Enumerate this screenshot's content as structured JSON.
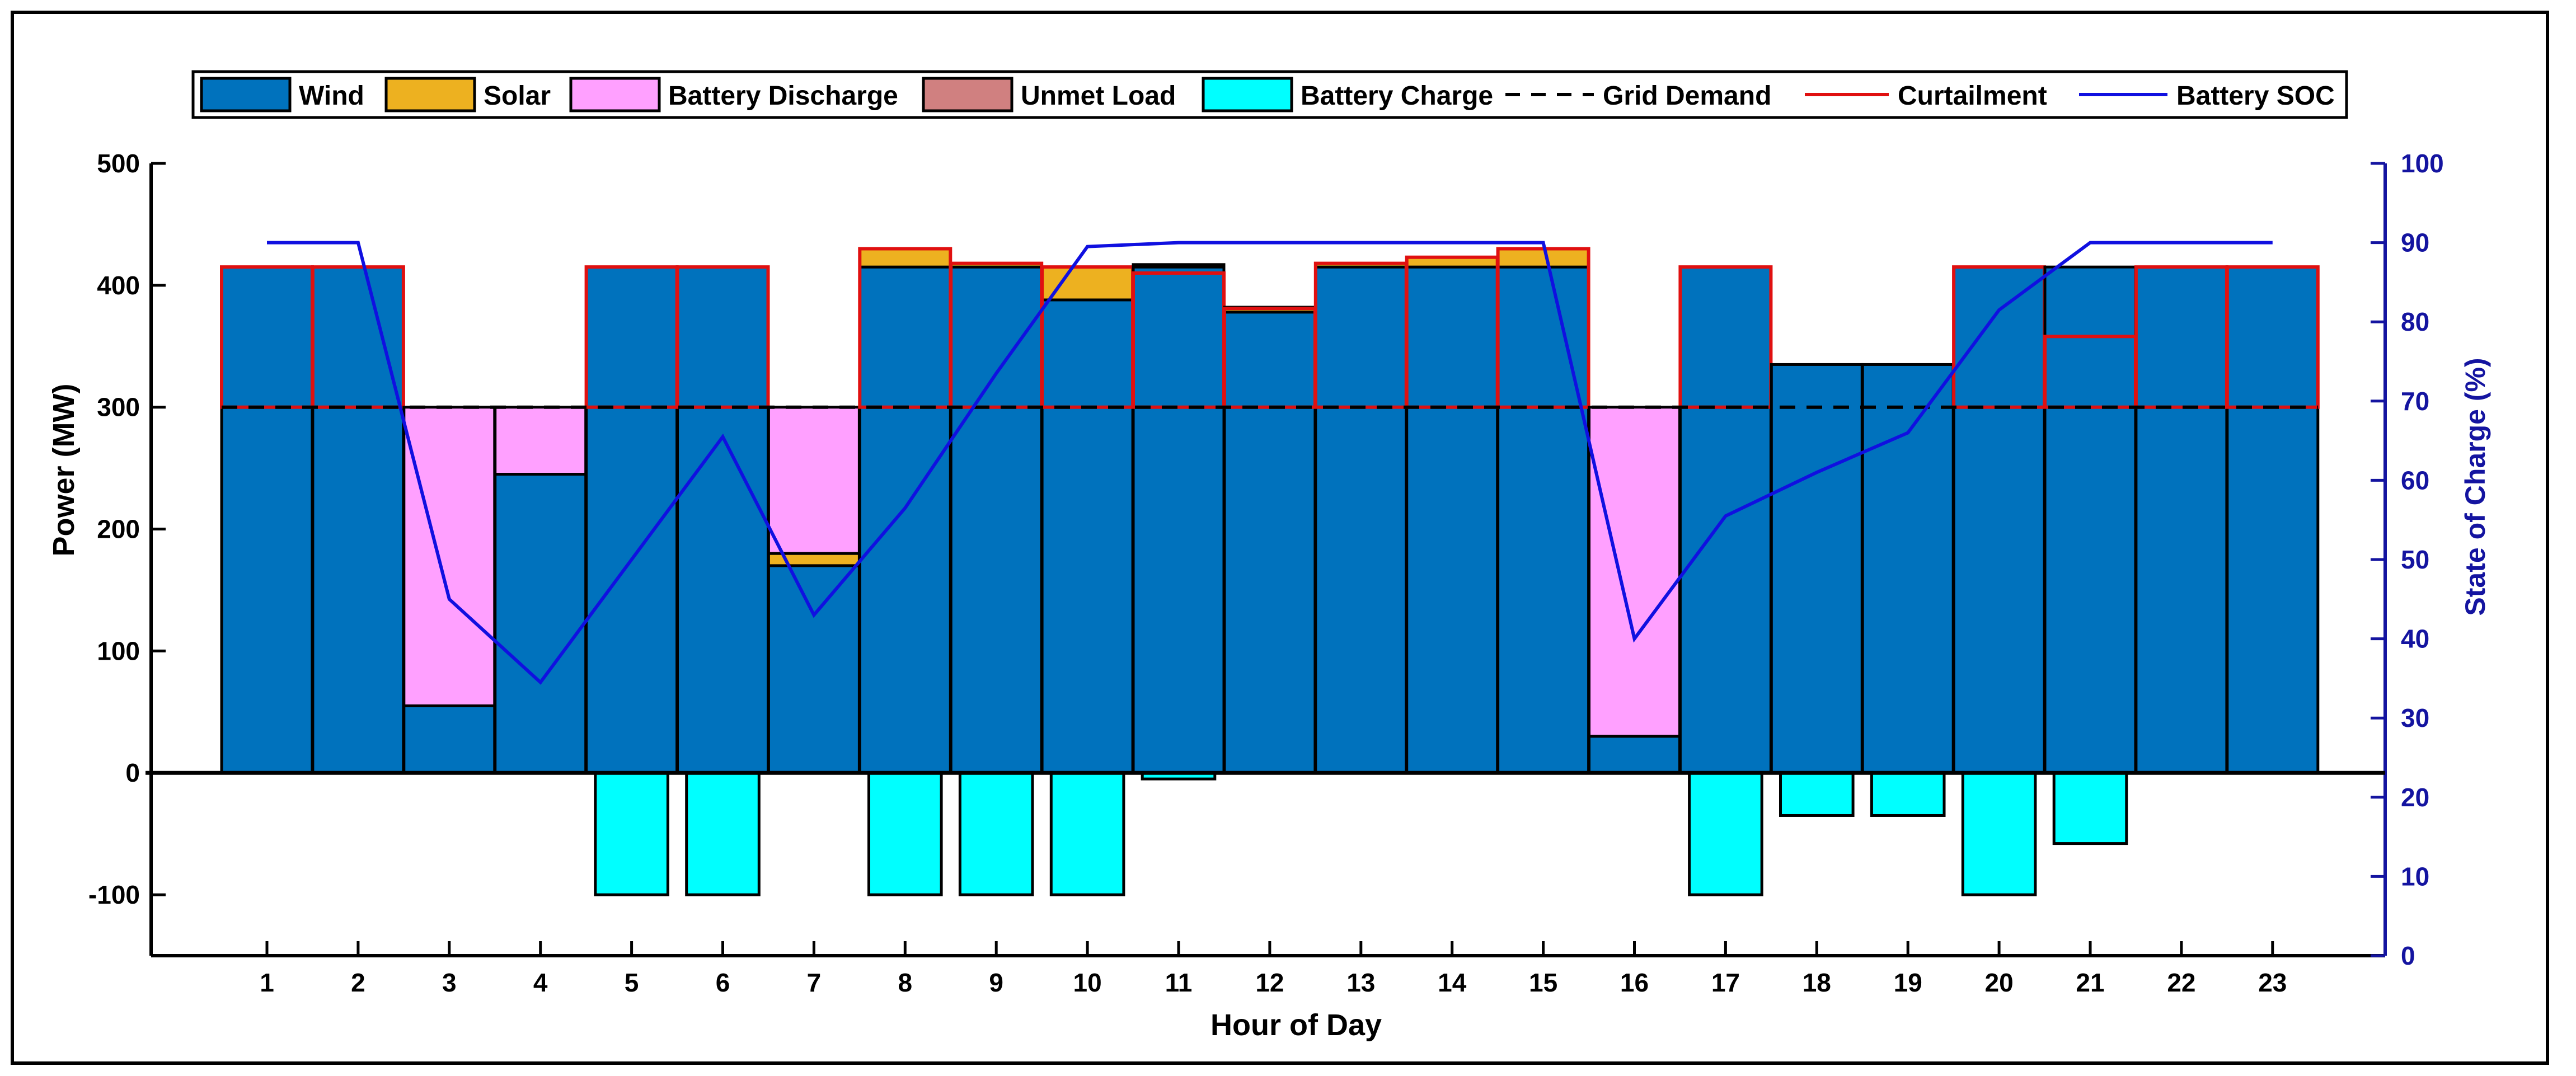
{
  "chart_data": {
    "type": "bar",
    "xlabel": "Hour of Day",
    "ylabel": "Power (MW)",
    "y2label": "State of Charge (%)",
    "ylim": [
      -150,
      500
    ],
    "y2lim": [
      0,
      100
    ],
    "yticks": [
      -100,
      0,
      100,
      200,
      300,
      400,
      500
    ],
    "y2ticks": [
      0,
      10,
      20,
      30,
      40,
      50,
      60,
      70,
      80,
      90,
      100
    ],
    "categories": [
      "1",
      "2",
      "3",
      "4",
      "5",
      "6",
      "7",
      "8",
      "9",
      "10",
      "11",
      "12",
      "13",
      "14",
      "15",
      "16",
      "17",
      "18",
      "19",
      "20",
      "21",
      "22",
      "23"
    ],
    "legend_position": "top",
    "legend": [
      {
        "key": "wind",
        "label": "Wind",
        "kind": "patch"
      },
      {
        "key": "solar",
        "label": "Solar",
        "kind": "patch"
      },
      {
        "key": "discharge",
        "label": "Battery Discharge",
        "kind": "patch"
      },
      {
        "key": "unmet",
        "label": "Unmet Load",
        "kind": "patch"
      },
      {
        "key": "charge",
        "label": "Battery Charge",
        "kind": "patch"
      },
      {
        "key": "demand",
        "label": "Grid Demand",
        "kind": "dashed"
      },
      {
        "key": "curtail",
        "label": "Curtailment",
        "kind": "line"
      },
      {
        "key": "soc",
        "label": "Battery SOC",
        "kind": "line"
      }
    ],
    "colors": {
      "wind": "#0072bd",
      "solar": "#edb120",
      "discharge": "#ffa0ff",
      "unmet": "#d08080",
      "charge": "#00ffff",
      "demand": "#000000",
      "curtail": "#e01010",
      "soc": "#1010e0"
    },
    "series": [
      {
        "name": "Wind",
        "key": "wind",
        "values": [
          415,
          415,
          55,
          245,
          415,
          415,
          170,
          415,
          415,
          388,
          415,
          378,
          415,
          415,
          415,
          30,
          415,
          335,
          335,
          415,
          415,
          415,
          415
        ]
      },
      {
        "name": "Solar",
        "key": "solar",
        "values": [
          0,
          0,
          0,
          0,
          0,
          0,
          10,
          15,
          3,
          27,
          2,
          4,
          3,
          8,
          15,
          0,
          0,
          0,
          0,
          0,
          0,
          0,
          0
        ]
      },
      {
        "name": "Battery Discharge",
        "key": "discharge",
        "values": [
          0,
          0,
          245,
          55,
          0,
          0,
          120,
          0,
          0,
          0,
          0,
          0,
          0,
          0,
          0,
          270,
          0,
          0,
          0,
          0,
          0,
          0,
          0
        ]
      },
      {
        "name": "Unmet Load",
        "key": "unmet",
        "values": [
          0,
          0,
          0,
          0,
          0,
          0,
          0,
          0,
          0,
          0,
          0,
          0,
          0,
          0,
          0,
          0,
          0,
          0,
          0,
          0,
          0,
          0,
          0
        ]
      },
      {
        "name": "Battery Charge",
        "key": "charge",
        "values": [
          0,
          0,
          0,
          0,
          -100,
          -100,
          0,
          -100,
          -100,
          -100,
          -5,
          0,
          0,
          0,
          0,
          0,
          -100,
          -35,
          -35,
          -100,
          -58,
          0,
          0
        ]
      },
      {
        "name": "Grid Demand",
        "key": "demand",
        "values": [
          300,
          300,
          300,
          300,
          300,
          300,
          300,
          300,
          300,
          300,
          300,
          300,
          300,
          300,
          300,
          300,
          300,
          300,
          300,
          300,
          300,
          300,
          300
        ]
      },
      {
        "name": "Curtailment",
        "key": "curtail",
        "values": [
          115,
          115,
          0,
          0,
          115,
          115,
          0,
          130,
          118,
          115,
          110,
          81,
          118,
          123,
          130,
          0,
          115,
          0,
          0,
          115,
          58,
          115,
          115
        ]
      },
      {
        "name": "Battery SOC",
        "key": "soc",
        "axis": "right",
        "values": [
          90,
          90,
          45,
          34.5,
          50,
          65.5,
          43,
          56.5,
          73.5,
          89.5,
          90,
          90,
          90,
          90,
          90,
          40,
          55.5,
          61,
          66,
          81.5,
          90,
          90,
          90
        ]
      }
    ]
  }
}
